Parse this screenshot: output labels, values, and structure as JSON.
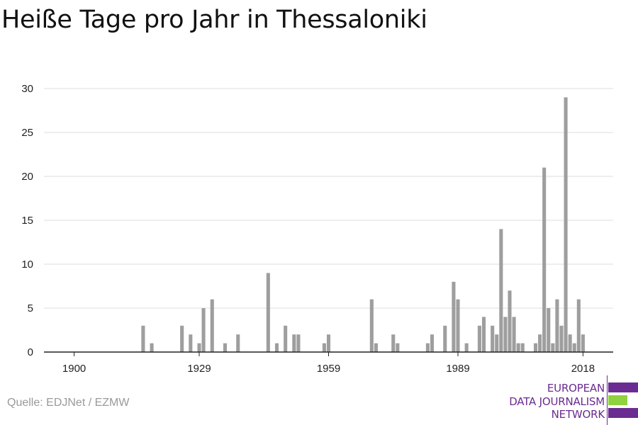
{
  "title": "Heiße Tage pro Jahr in Thessaloniki",
  "source": "Quelle: EDJNet / EZMW",
  "logo": {
    "lines": [
      "EUROPEAN",
      "DATA JOURNALISM",
      "NETWORK"
    ],
    "colors": {
      "purple": "#6a2c91",
      "green": "#8fd13f"
    }
  },
  "colors": {
    "bar": "#9e9e9e",
    "grid": "#dddddd",
    "axis": "#222222",
    "text": "#222222"
  },
  "chart_data": {
    "type": "bar",
    "title": "Heiße Tage pro Jahr in Thessaloniki",
    "xlabel": "",
    "ylabel": "",
    "xlim": [
      1893,
      2025
    ],
    "ylim": [
      0,
      30
    ],
    "xticks": [
      1900,
      1929,
      1959,
      1989,
      2018
    ],
    "yticks": [
      0,
      5,
      10,
      15,
      20,
      25,
      30
    ],
    "grid": true,
    "x": [
      1916,
      1918,
      1925,
      1927,
      1929,
      1930,
      1932,
      1935,
      1938,
      1945,
      1947,
      1949,
      1951,
      1952,
      1958,
      1959,
      1969,
      1970,
      1974,
      1975,
      1982,
      1983,
      1986,
      1988,
      1989,
      1991,
      1994,
      1995,
      1997,
      1998,
      1999,
      2000,
      2001,
      2002,
      2003,
      2004,
      2007,
      2008,
      2009,
      2010,
      2011,
      2012,
      2013,
      2014,
      2015,
      2016,
      2017,
      2018
    ],
    "values": [
      3,
      1,
      3,
      2,
      1,
      5,
      6,
      1,
      2,
      9,
      1,
      3,
      2,
      2,
      1,
      2,
      6,
      1,
      2,
      1,
      1,
      2,
      3,
      8,
      6,
      1,
      3,
      4,
      3,
      2,
      14,
      4,
      7,
      4,
      1,
      1,
      1,
      2,
      21,
      5,
      1,
      6,
      3,
      29,
      2,
      1,
      6,
      2
    ]
  }
}
